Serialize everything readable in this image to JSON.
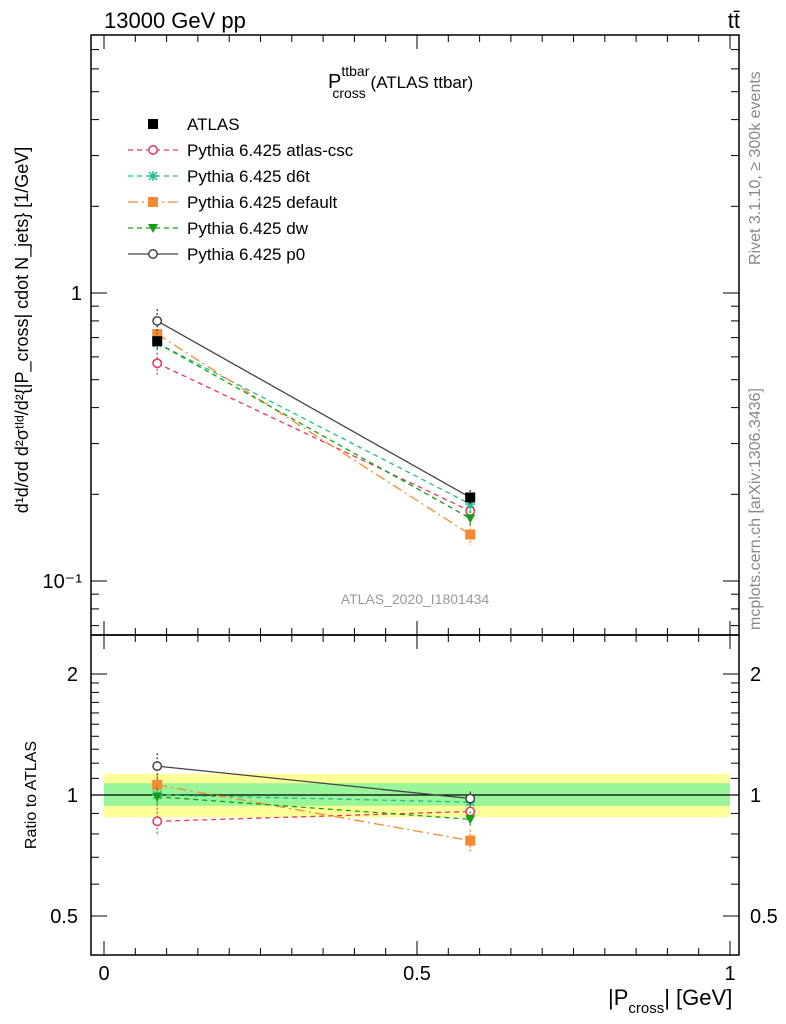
{
  "header": {
    "energy_label": "13000 GeV pp",
    "process_label": "tt̄"
  },
  "side_labels": {
    "rivet": "Rivet 3.1.10, ≥ 300k events",
    "mcplots": "mcplots.cern.ch [arXiv:1306.3436]"
  },
  "colors": {
    "atlas": "#000000",
    "atlas_csc": "#e8355e",
    "d6t": "#1fbf8f",
    "default": "#f58a32",
    "dw": "#14a014",
    "p0": "#444444",
    "band_inner": "#99f599",
    "band_outer": "#ffff99",
    "watermark": "#999999"
  },
  "chart_data": {
    "type": "line",
    "title_main": "P",
    "title_sup": "ttbar",
    "title_sub": "cross",
    "title_rest": " (ATLAS ttbar)",
    "watermark": "ATLAS_2020_I1801434",
    "ylabel_main": "d¹d/σd d²σᵗᴵᵈ/d²{|P_cross| cdot N_jets} [1/GeV]",
    "ylabel_ratio": "Ratio to ATLAS",
    "xlabel_main": "|P",
    "xlabel_sub": "cross",
    "xlabel_rest": "| [GeV]",
    "x_range": [
      0,
      1
    ],
    "y_range_main": [
      0.065,
      10
    ],
    "y_scale_main": "log",
    "y_range_ratio": [
      0.4,
      2.4
    ],
    "y_scale_ratio": "log",
    "x_ticks": [
      "0",
      "0.5",
      "1"
    ],
    "y_ticks_main": [
      "1",
      "10⁻¹"
    ],
    "y_ticks_ratio": [
      "0.5",
      "1",
      "2"
    ],
    "legend_position": "top-left",
    "data": {
      "name": "ATLAS",
      "x": [
        0.085,
        0.585
      ],
      "y": [
        0.68,
        0.195
      ],
      "yerr": [
        0.02,
        0.008
      ]
    },
    "series": [
      {
        "name": "Pythia 6.425 atlas-csc",
        "key": "atlas_csc",
        "dash": "5,4",
        "marker": "open-circle",
        "x": [
          0.085,
          0.585
        ],
        "y": [
          0.57,
          0.175
        ],
        "yerr": [
          0.05,
          0.01
        ],
        "ratio": [
          0.86,
          0.91
        ],
        "ratio_err": [
          0.07,
          0.03
        ]
      },
      {
        "name": "Pythia 6.425 d6t",
        "key": "d6t",
        "dash": "5,4",
        "marker": "star",
        "x": [
          0.085,
          0.585
        ],
        "y": [
          0.67,
          0.185
        ],
        "yerr": [
          0.04,
          0.01
        ],
        "ratio": [
          1.0,
          0.96
        ],
        "ratio_err": [
          0.05,
          0.03
        ]
      },
      {
        "name": "Pythia 6.425 default",
        "key": "default",
        "dash": "10,4,2,4",
        "marker": "square",
        "x": [
          0.085,
          0.585
        ],
        "y": [
          0.72,
          0.145
        ],
        "yerr": [
          0.05,
          0.012
        ],
        "ratio": [
          1.06,
          0.77
        ],
        "ratio_err": [
          0.06,
          0.05
        ]
      },
      {
        "name": "Pythia 6.425 dw",
        "key": "dw",
        "dash": "5,4",
        "marker": "down-triangle",
        "x": [
          0.085,
          0.585
        ],
        "y": [
          0.67,
          0.165
        ],
        "yerr": [
          0.04,
          0.01
        ],
        "ratio": [
          0.99,
          0.87
        ],
        "ratio_err": [
          0.05,
          0.04
        ]
      },
      {
        "name": "Pythia 6.425 p0",
        "key": "p0",
        "dash": "",
        "marker": "open-circle",
        "x": [
          0.085,
          0.585
        ],
        "y": [
          0.8,
          0.195
        ],
        "yerr": [
          0.08,
          0.012
        ],
        "ratio": [
          1.18,
          0.98
        ],
        "ratio_err": [
          0.09,
          0.04
        ]
      }
    ],
    "ratio_band": {
      "x": [
        0,
        1
      ],
      "outer_lo": 0.88,
      "outer_hi": 1.13,
      "inner_lo": 0.94,
      "inner_hi": 1.07
    }
  }
}
